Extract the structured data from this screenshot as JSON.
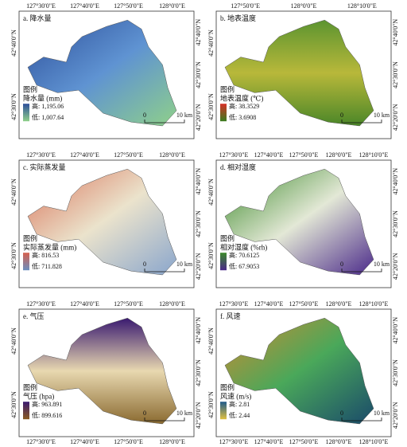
{
  "panels": [
    {
      "label": "a. 降水量",
      "legend_title": "图例",
      "legend_name": "降水量 (mm)",
      "high": "高: 1,195.06",
      "low": "低: 1,007.64",
      "map_colors": [
        "#2d4f9a",
        "#5f93d2",
        "#8fd08a"
      ],
      "high_color": "#2d4f9a",
      "low_color": "#8fd08a",
      "scale": [
        "0",
        "10 km"
      ],
      "top_ticks": [
        "127°30'0\"E",
        "127°40'0\"E",
        "127°50'0\"E",
        "128°0'0\"E"
      ],
      "left_ticks": [
        "42°40'0\"N",
        "42°30'0\"N"
      ],
      "right_ticks": [
        "42°40'0\"N",
        "42°30'0\"N",
        "42°20'0\"N"
      ]
    },
    {
      "label": "b. 地表温度",
      "legend_title": "图例",
      "legend_name": "地表温度 (℃)",
      "high": "高: 38.3529",
      "low": "低: 3.6908",
      "map_colors": [
        "#5c9430",
        "#b8b83a",
        "#4a8628"
      ],
      "high_color": "#d73027",
      "low_color": "#3a7d1f",
      "scale": [
        "0",
        "10 km"
      ],
      "top_ticks": [
        "127°50'0\"E",
        "128°0'0\"E",
        "128°10'0\"E"
      ],
      "left_ticks": [
        "42°40'0\"N",
        "42°30'0\"N"
      ],
      "right_ticks": [
        "42°40'0\"N",
        "42°30'0\"N",
        "42°20'0\"N"
      ]
    },
    {
      "label": "c. 实际蒸发量",
      "legend_title": "图例",
      "legend_name": "实际蒸发量 (mm)",
      "high": "高: 816.53",
      "low": "低: 711.828",
      "map_colors": [
        "#d9735a",
        "#ebe3cc",
        "#8aa6cc"
      ],
      "high_color": "#d6604d",
      "low_color": "#6b8fc0",
      "scale": [
        "0",
        "10 km"
      ],
      "top_ticks": [
        "127°30'0\"E",
        "127°40'0\"E",
        "127°50'0\"E",
        "128°0'0\"E"
      ],
      "left_ticks": [
        "42°40'0\"N",
        "42°30'0\"N"
      ],
      "right_ticks": [
        "42°40'0\"N",
        "42°30'0\"N",
        "42°20'0\"N"
      ]
    },
    {
      "label": "d. 相对湿度",
      "legend_title": "图例",
      "legend_name": "相对湿度 (%rh)",
      "high": "高: 70.6125",
      "low": "低: 67.9053",
      "map_colors": [
        "#3b8a2a",
        "#e3e8d6",
        "#4b2a8a"
      ],
      "high_color": "#3b8a2a",
      "low_color": "#4b2a8a",
      "scale": [
        "0",
        "10 km"
      ],
      "top_ticks": [
        "127°30'0\"E",
        "127°40'0\"E",
        "127°50'0\"E",
        "128°0'0\"E",
        "128°10'0\"E"
      ],
      "left_ticks": [
        "42°40'0\"N",
        "42°30'0\"N"
      ],
      "right_ticks": [
        "42°40'0\"N",
        "42°30'0\"N",
        "42°20'0\"N"
      ]
    },
    {
      "label": "e. 气压",
      "legend_title": "图例",
      "legend_name": "气压 (hpa)",
      "high": "高: 963.891",
      "low": "低: 899.616",
      "map_colors": [
        "#3a1a70",
        "#e8d8b0",
        "#8a6a30"
      ],
      "high_color": "#3a1a70",
      "low_color": "#8a5a20",
      "scale": [
        "0",
        "10 km"
      ],
      "top_ticks": [
        "127°30'0\"E",
        "127°40'0\"E",
        "127°50'0\"E",
        "128°0'0\"E"
      ],
      "bottom_ticks": [
        "127°30'0\"E",
        "127°40'0\"E",
        "127°50'0\"E",
        "128°0'0\"E"
      ],
      "left_ticks": [
        "42°40'0\"N",
        "42°30'0\"N"
      ],
      "right_ticks": [
        "42°40'0\"N",
        "42°30'0\"N",
        "42°20'0\"N"
      ]
    },
    {
      "label": "f. 风速",
      "legend_title": "图例",
      "legend_name": "风速 (m/s)",
      "high": "高: 2.81",
      "low": "低: 2.44",
      "map_colors": [
        "#d08a30",
        "#4aa85a",
        "#1a4a6a"
      ],
      "high_color": "#1f5a8a",
      "low_color": "#e0c040",
      "scale": [
        "0",
        "10 km"
      ],
      "top_ticks": [
        "127°30'0\"E",
        "127°40'0\"E",
        "127°50'0\"E",
        "128°0'0\"E",
        "128°10'0\"E"
      ],
      "bottom_ticks": [
        "127°30'0\"E",
        "127°40'0\"E",
        "127°50'0\"E",
        "128°0'0\"E",
        "128°10'0\"E"
      ],
      "left_ticks": [
        "42°40'0\"N",
        "42°30'0\"N"
      ],
      "right_ticks": [
        "42°40'0\"N",
        "42°30'0\"N",
        "42°20'0\"N"
      ]
    }
  ]
}
